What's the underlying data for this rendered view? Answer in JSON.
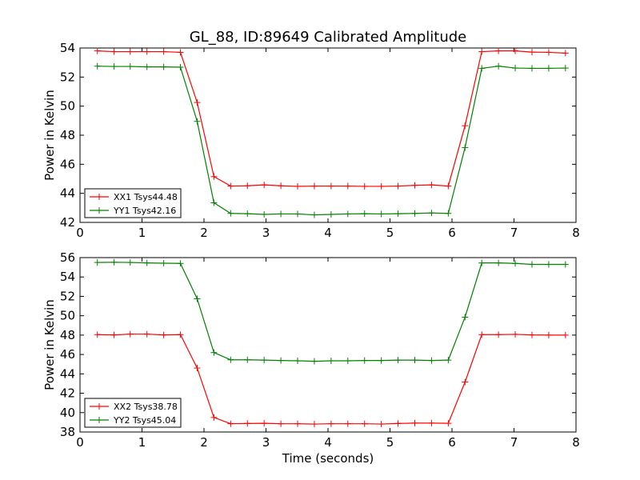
{
  "figure_title": "GL_88, ID:89649 Calibrated Amplitude",
  "chart_data": [
    {
      "type": "line",
      "title": "GL_88, ID:89649 Calibrated Amplitude",
      "xlabel": "",
      "ylabel": "Power in Kelvin",
      "xlim": [
        0,
        8
      ],
      "ylim": [
        42,
        54
      ],
      "xticks": [
        0,
        1,
        2,
        3,
        4,
        5,
        6,
        7,
        8
      ],
      "yticks": [
        42,
        44,
        46,
        48,
        50,
        52,
        54
      ],
      "grid": false,
      "legend": "bottom-left",
      "x": [
        0.28,
        0.55,
        0.81,
        1.08,
        1.35,
        1.62,
        1.89,
        2.16,
        2.43,
        2.7,
        2.97,
        3.24,
        3.51,
        3.78,
        4.05,
        4.32,
        4.59,
        4.86,
        5.13,
        5.4,
        5.67,
        5.94,
        6.21,
        6.48,
        6.75,
        7.02,
        7.29,
        7.56,
        7.83
      ],
      "series": [
        {
          "name": "XX1 Tsys44.48",
          "color": "#ff0000",
          "values": [
            53.8,
            53.75,
            53.75,
            53.75,
            53.75,
            53.7,
            50.25,
            45.15,
            44.5,
            44.52,
            44.58,
            44.52,
            44.48,
            44.5,
            44.5,
            44.5,
            44.48,
            44.48,
            44.5,
            44.55,
            44.58,
            44.5,
            48.65,
            53.75,
            53.8,
            53.8,
            53.72,
            53.7,
            53.65
          ]
        },
        {
          "name": "YY1 Tsys42.16",
          "color": "#008000",
          "values": [
            52.75,
            52.73,
            52.73,
            52.7,
            52.7,
            52.68,
            48.95,
            43.35,
            42.62,
            42.6,
            42.55,
            42.58,
            42.58,
            42.52,
            42.55,
            42.58,
            42.6,
            42.58,
            42.6,
            42.62,
            42.65,
            42.62,
            47.15,
            52.6,
            52.75,
            52.62,
            52.6,
            52.6,
            52.62
          ]
        }
      ]
    },
    {
      "type": "line",
      "title": "",
      "xlabel": "Time (seconds)",
      "ylabel": "Power in Kelvin",
      "xlim": [
        0,
        8
      ],
      "ylim": [
        38,
        56
      ],
      "xticks": [
        0,
        1,
        2,
        3,
        4,
        5,
        6,
        7,
        8
      ],
      "yticks": [
        38,
        40,
        42,
        44,
        46,
        48,
        50,
        52,
        54,
        56
      ],
      "grid": false,
      "legend": "bottom-left",
      "x": [
        0.28,
        0.55,
        0.81,
        1.08,
        1.35,
        1.62,
        1.89,
        2.16,
        2.43,
        2.7,
        2.97,
        3.24,
        3.51,
        3.78,
        4.05,
        4.32,
        4.59,
        4.86,
        5.13,
        5.4,
        5.67,
        5.94,
        6.21,
        6.48,
        6.75,
        7.02,
        7.29,
        7.56,
        7.83
      ],
      "series": [
        {
          "name": "XX2 Tsys38.78",
          "color": "#ff0000",
          "values": [
            48.05,
            48.02,
            48.1,
            48.1,
            48.02,
            48.05,
            44.6,
            39.5,
            38.85,
            38.88,
            38.9,
            38.85,
            38.85,
            38.82,
            38.85,
            38.85,
            38.85,
            38.82,
            38.88,
            38.92,
            38.92,
            38.9,
            43.15,
            48.05,
            48.05,
            48.08,
            48.02,
            48.0,
            48.0
          ]
        },
        {
          "name": "YY2 Tsys45.04",
          "color": "#008000",
          "values": [
            55.5,
            55.52,
            55.5,
            55.45,
            55.42,
            55.4,
            51.75,
            46.2,
            45.45,
            45.45,
            45.42,
            45.38,
            45.35,
            45.3,
            45.35,
            45.35,
            45.38,
            45.38,
            45.42,
            45.42,
            45.38,
            45.42,
            49.85,
            55.45,
            55.45,
            55.4,
            55.3,
            55.3,
            55.3
          ]
        }
      ]
    }
  ]
}
